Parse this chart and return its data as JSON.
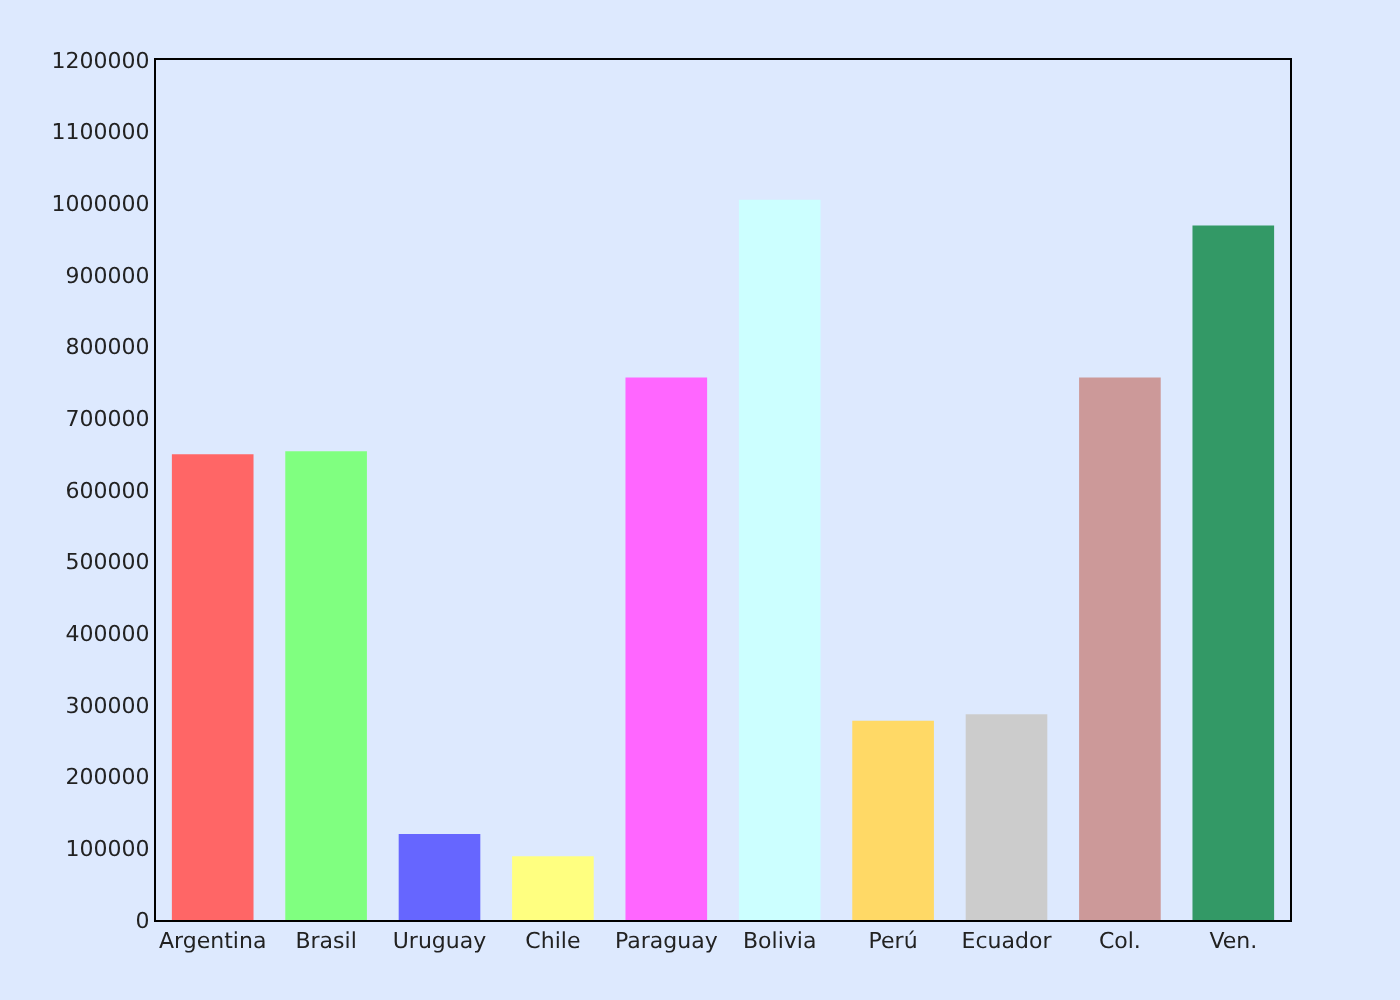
{
  "chart_data": {
    "type": "bar",
    "categories": [
      "Argentina",
      "Brasil",
      "Uruguay",
      "Chile",
      "Paraguay",
      "Bolivia",
      "Perú",
      "Ecuador",
      "Col.",
      "Ven."
    ],
    "values": [
      650000,
      654000,
      120000,
      89000,
      757000,
      1005000,
      278000,
      287000,
      757000,
      969000
    ],
    "colors": [
      "#ff6666",
      "#80ff80",
      "#6666ff",
      "#ffff80",
      "#ff66ff",
      "#ccffff",
      "#ffd966",
      "#cccccc",
      "#cc9999",
      "#339966"
    ],
    "ylim": [
      0,
      1200000
    ],
    "yticks": [
      0,
      100000,
      200000,
      300000,
      400000,
      500000,
      600000,
      700000,
      800000,
      900000,
      1000000,
      1100000,
      1200000
    ],
    "grid": false
  }
}
